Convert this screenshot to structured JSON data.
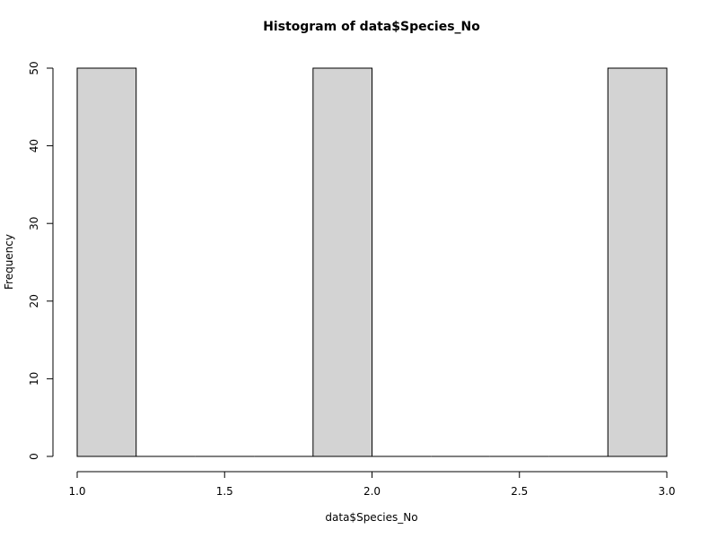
{
  "chart_data": {
    "type": "bar",
    "title": "Histogram of data$Species_No",
    "xlabel": "data$Species_No",
    "ylabel": "Frequency",
    "xlim": [
      1.0,
      3.0
    ],
    "ylim": [
      0,
      50
    ],
    "bins": [
      {
        "x0": 1.0,
        "x1": 1.2,
        "count": 50
      },
      {
        "x0": 1.2,
        "x1": 1.4,
        "count": 0
      },
      {
        "x0": 1.4,
        "x1": 1.6,
        "count": 0
      },
      {
        "x0": 1.6,
        "x1": 1.8,
        "count": 0
      },
      {
        "x0": 1.8,
        "x1": 2.0,
        "count": 50
      },
      {
        "x0": 2.0,
        "x1": 2.2,
        "count": 0
      },
      {
        "x0": 2.2,
        "x1": 2.4,
        "count": 0
      },
      {
        "x0": 2.4,
        "x1": 2.6,
        "count": 0
      },
      {
        "x0": 2.6,
        "x1": 2.8,
        "count": 0
      },
      {
        "x0": 2.8,
        "x1": 3.0,
        "count": 50
      }
    ],
    "x_ticks": [
      {
        "value": 1.0,
        "label": "1.0"
      },
      {
        "value": 1.5,
        "label": "1.5"
      },
      {
        "value": 2.0,
        "label": "2.0"
      },
      {
        "value": 2.5,
        "label": "2.5"
      },
      {
        "value": 3.0,
        "label": "3.0"
      }
    ],
    "y_ticks": [
      {
        "value": 0,
        "label": "0"
      },
      {
        "value": 10,
        "label": "10"
      },
      {
        "value": 20,
        "label": "20"
      },
      {
        "value": 30,
        "label": "30"
      },
      {
        "value": 40,
        "label": "40"
      },
      {
        "value": 50,
        "label": "50"
      }
    ],
    "grid": false,
    "bar_fill": "#d3d3d3",
    "bar_stroke": "#000000"
  }
}
